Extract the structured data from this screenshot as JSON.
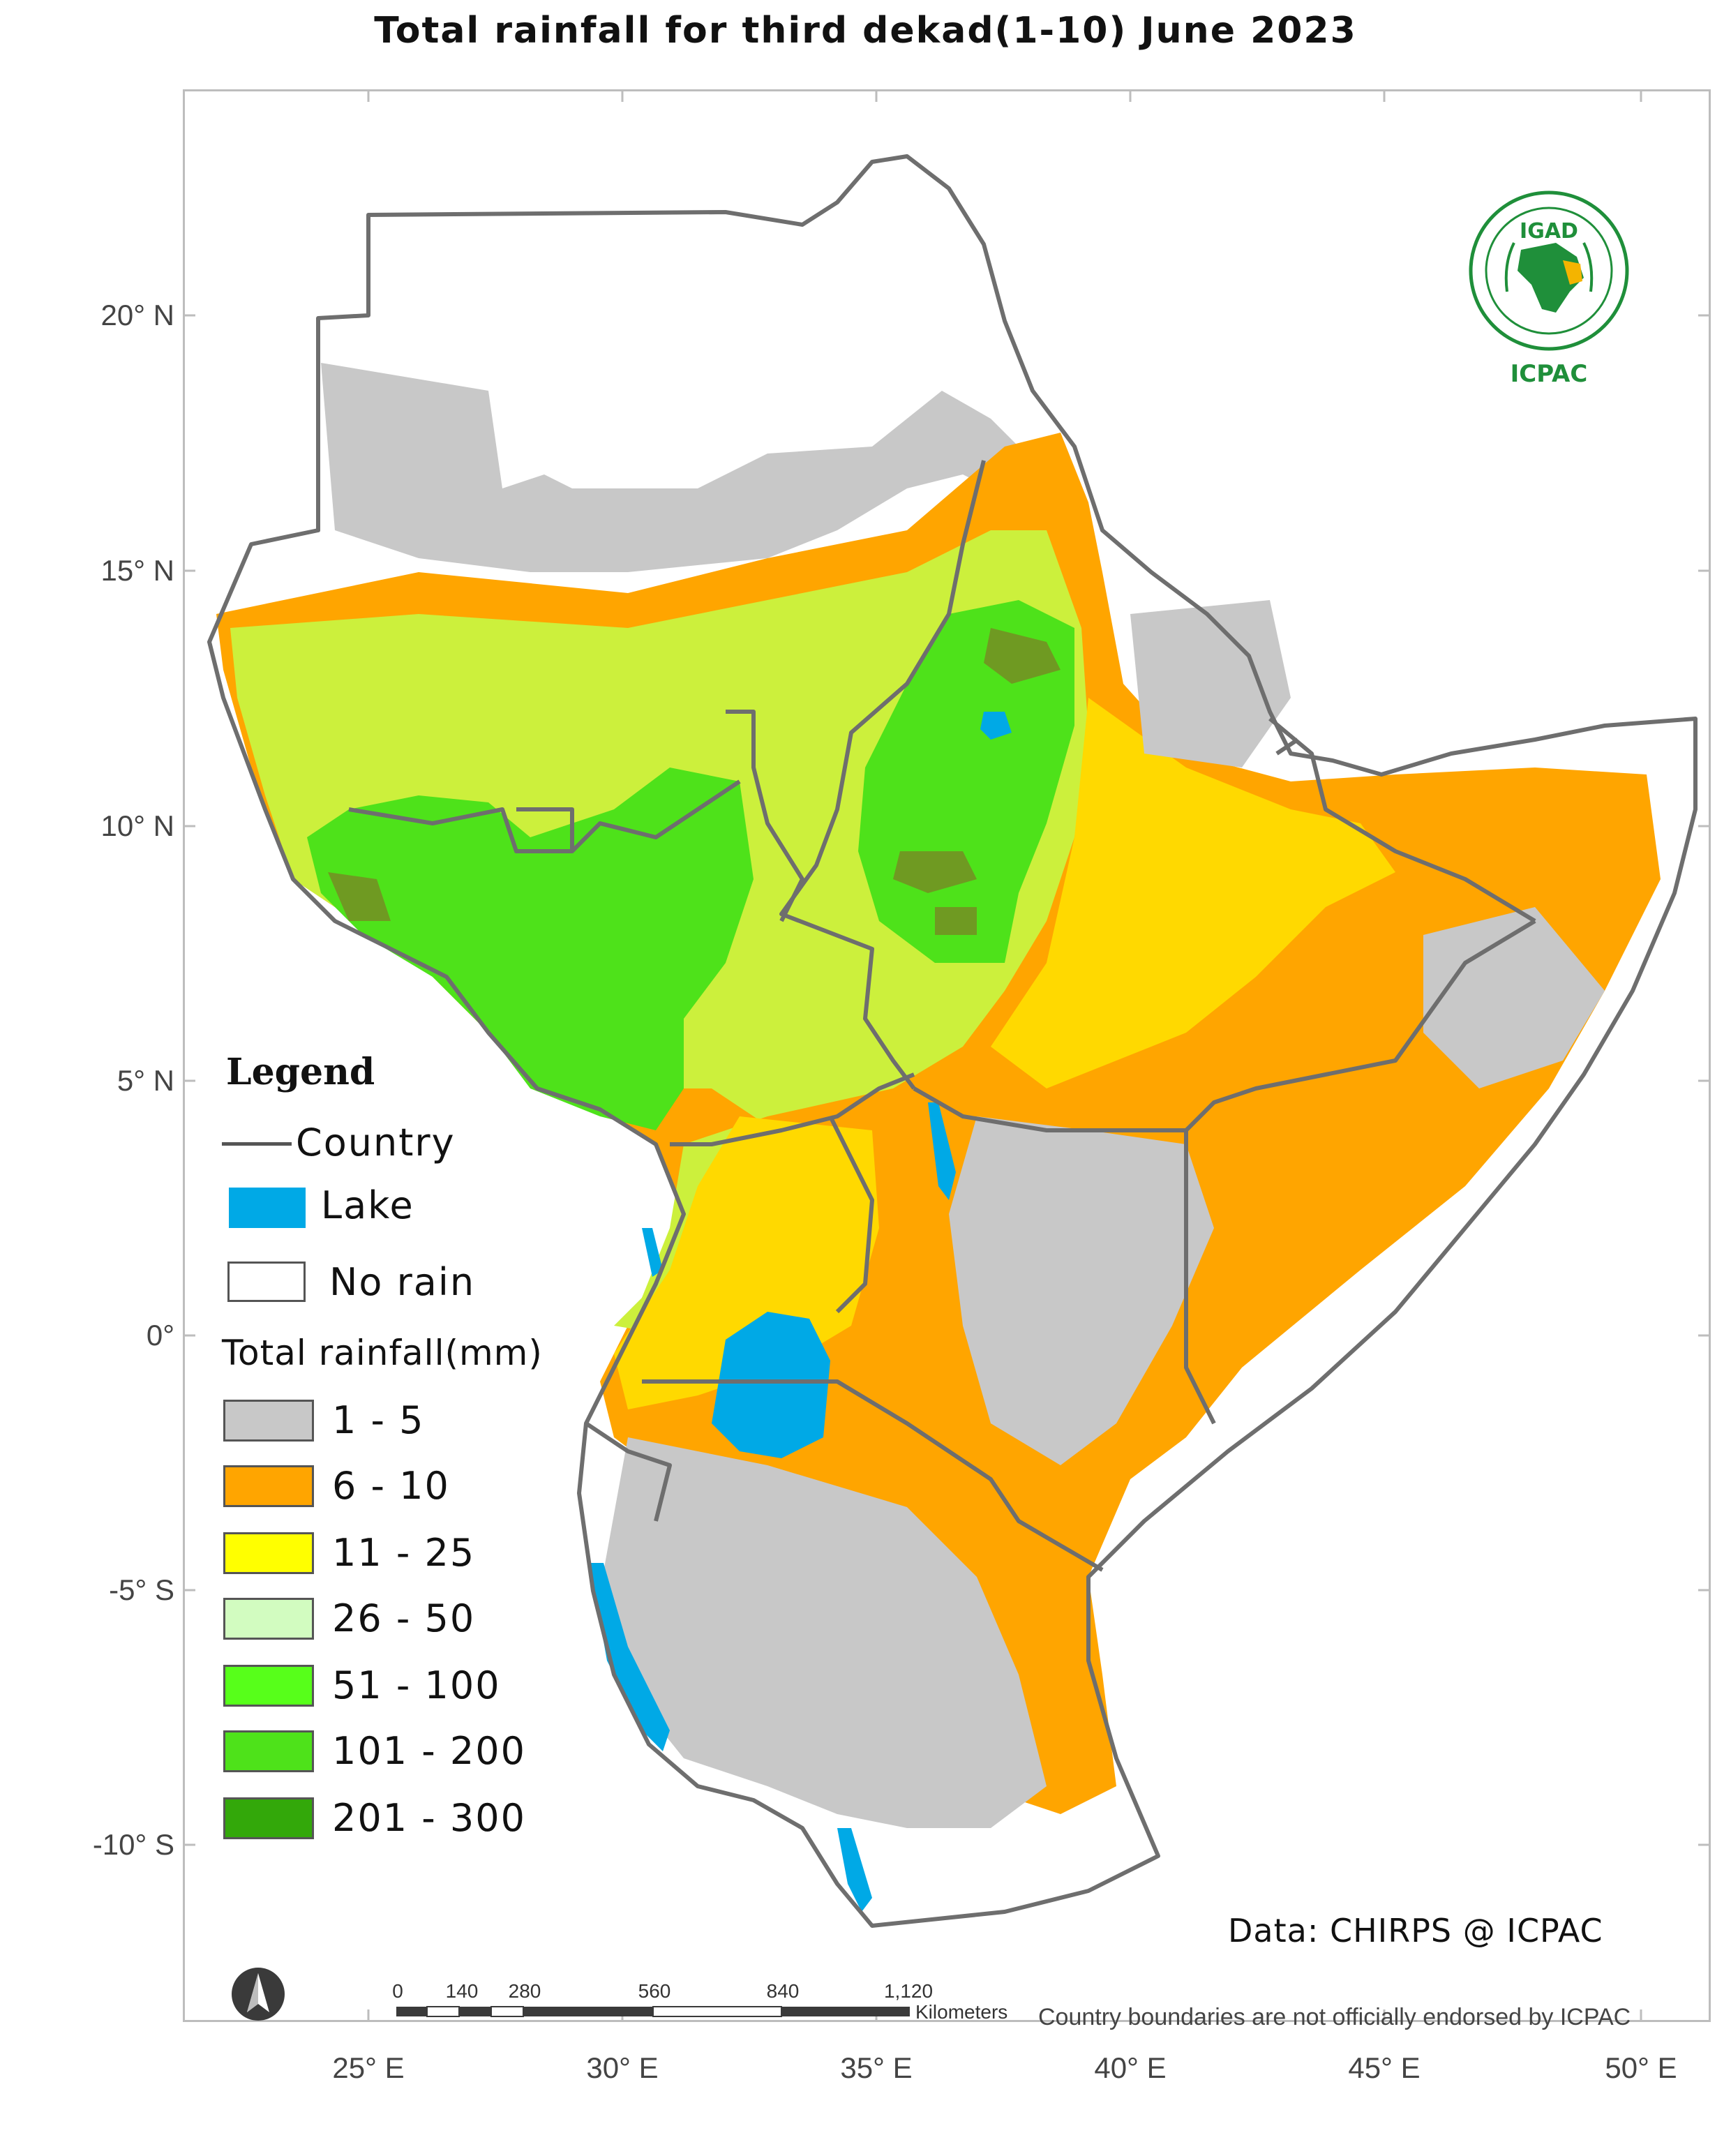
{
  "title": "Total rainfall  for  third dekad(1-10)  June  2023",
  "axes": {
    "y_ticks": [
      "20° N",
      "15° N",
      "10° N",
      "5° N",
      "0°",
      "-5° S",
      "-10° S"
    ],
    "x_ticks": [
      "25° E",
      "30° E",
      "35° E",
      "40° E",
      "45° E",
      "50° E"
    ]
  },
  "legend": {
    "title": "Legend",
    "country_label": "Country",
    "lake_label": "Lake",
    "no_rain_label": "No rain",
    "rainfall_title": "Total rainfall(mm)",
    "classes": [
      {
        "label": "1 - 5",
        "color": "#c8c8c8"
      },
      {
        "label": "6 - 10",
        "color": "#ffa500"
      },
      {
        "label": "11 - 25",
        "color": "#ffff00"
      },
      {
        "label": "26 - 50",
        "color": "#d2fcc0"
      },
      {
        "label": "51 - 100",
        "color": "#57ff1a"
      },
      {
        "label": "101 - 200",
        "color": "#4ee21a"
      },
      {
        "label": "201 - 300",
        "color": "#33a80a"
      }
    ],
    "lake_color": "#00a9e6",
    "country_color": "#555555",
    "no_rain_color": "#ffffff"
  },
  "map_colors": {
    "light_green": "#ccf03c",
    "dark_green": "#6f9a22",
    "yellow_mix": "#ffd900"
  },
  "logo": {
    "top_text": "IGAD",
    "bottom_text": "ICPAC",
    "icon": "igad-emblem-icon",
    "color": "#1f8f3a"
  },
  "credit": "Data: CHIRPS @ ICPAC",
  "disclaimer": "Country boundaries are not officially endorsed by ICPAC",
  "scale_bar": {
    "labels": [
      "0",
      "140",
      "280",
      "560",
      "840",
      "1,120"
    ],
    "unit": "Kilometers"
  },
  "north_arrow": {
    "icon": "north-arrow-icon"
  }
}
